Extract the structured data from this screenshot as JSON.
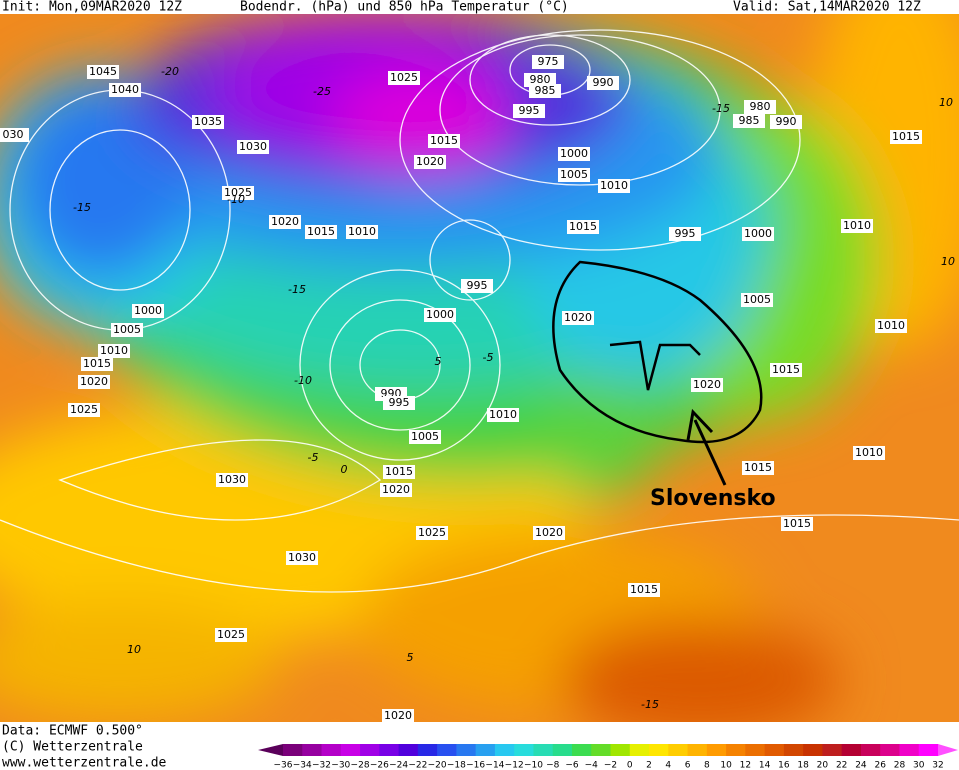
{
  "header": {
    "init": "Init: Mon,09MAR2020 12Z",
    "title": "Bodendr. (hPa) und 850 hPa Temperatur (°C)",
    "valid": "Valid: Sat,14MAR2020 12Z"
  },
  "map": {
    "isobar_labels": [
      "1045",
      "1040",
      "1035",
      "1030",
      "1025",
      "1025",
      "1020",
      "1015",
      "1010",
      "975",
      "980",
      "985",
      "990",
      "995",
      "1015",
      "1020",
      "980",
      "985",
      "990",
      "1000",
      "1005",
      "1010",
      "1015",
      "995",
      "1000",
      "1015",
      "1010",
      "995",
      "1000",
      "1005",
      "1010",
      "1020",
      "1020",
      "1015",
      "990",
      "995",
      "1010",
      "1005",
      "1015",
      "1020",
      "1030",
      "1025",
      "1020",
      "1030",
      "1025",
      "1015",
      "1015",
      "1015",
      "1010",
      "1000",
      "1005",
      "1010",
      "1015",
      "1020",
      "1025",
      "030",
      "1020"
    ],
    "isotherm_labels": [
      "-20",
      "-25",
      "-15",
      "-10",
      "-15",
      "-10",
      "-5",
      "0",
      "5",
      "-5",
      "10",
      "-15",
      "10",
      "-15",
      "10",
      "5"
    ],
    "annotation": "Slovensko"
  },
  "footer": {
    "data": "Data: ECMWF  0.500°",
    "copyright": "(C) Wetterzentrale",
    "url": "www.wetterzentrale.de"
  },
  "colorbar": {
    "labels": [
      "−36",
      "−34",
      "−32",
      "−30",
      "−28",
      "−26",
      "−24",
      "−22",
      "−20",
      "−18",
      "−16",
      "−14",
      "−12",
      "−10",
      "−8",
      "−6",
      "−4",
      "−2",
      "0",
      "2",
      "4",
      "6",
      "8",
      "10",
      "12",
      "14",
      "16",
      "18",
      "20",
      "22",
      "24",
      "26",
      "28",
      "30",
      "32"
    ],
    "colors": [
      "#5a005a",
      "#7a007a",
      "#9600a0",
      "#b400c8",
      "#c800e6",
      "#a000e6",
      "#7800e6",
      "#5000dc",
      "#2828e6",
      "#2850f0",
      "#2878f0",
      "#28a0f0",
      "#28c8f0",
      "#28dcdc",
      "#28dcb4",
      "#28dc8c",
      "#3cdc50",
      "#64dc28",
      "#a0e600",
      "#e6f000",
      "#ffe600",
      "#ffcd00",
      "#ffb400",
      "#ff9b00",
      "#f58200",
      "#eb6e00",
      "#e15a00",
      "#d24600",
      "#c83200",
      "#be1e1e",
      "#b40032",
      "#c8005a",
      "#dc008c",
      "#f000c8",
      "#ff00ff",
      "#ff50ff"
    ]
  }
}
